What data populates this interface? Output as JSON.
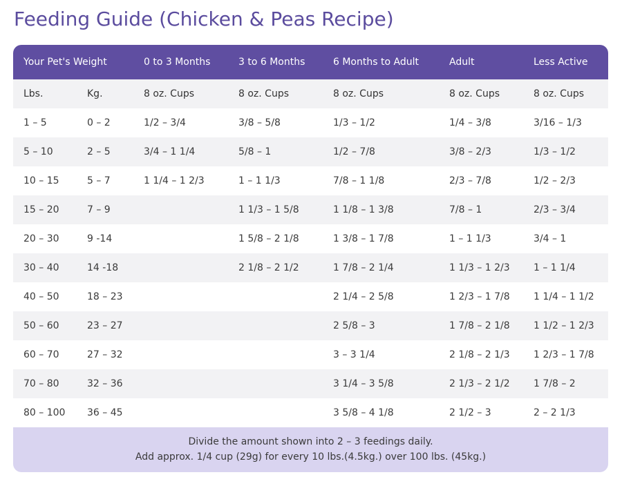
{
  "title": "Feeding Guide (Chicken & Peas Recipe)",
  "table": {
    "headers": [
      "Your Pet's Weight",
      "",
      "0 to 3 Months",
      "3 to 6 Months",
      "6 Months to Adult",
      "Adult",
      "Less Active"
    ],
    "unit_row": [
      "Lbs.",
      "Kg.",
      "8 oz. Cups",
      "8 oz. Cups",
      "8 oz. Cups",
      "8 oz. Cups",
      "8 oz. Cups"
    ],
    "rows": [
      [
        "1 – 5",
        "0 – 2",
        "1/2 – 3/4",
        "3/8 – 5/8",
        "1/3 – 1/2",
        "1/4 – 3/8",
        "3/16 – 1/3"
      ],
      [
        "5 – 10",
        "2 – 5",
        "3/4 – 1 1/4",
        "5/8 – 1",
        "1/2 – 7/8",
        "3/8 – 2/3",
        "1/3 – 1/2"
      ],
      [
        "10 – 15",
        "5 – 7",
        "1 1/4 – 1 2/3",
        "1 – 1 1/3",
        "7/8 – 1 1/8",
        "2/3 – 7/8",
        "1/2 – 2/3"
      ],
      [
        "15 – 20",
        "7 – 9",
        "",
        "1 1/3 – 1 5/8",
        "1 1/8 – 1 3/8",
        "7/8 – 1",
        "2/3 – 3/4"
      ],
      [
        "20 – 30",
        "9 -14",
        "",
        "1 5/8 – 2 1/8",
        "1 3/8 – 1 7/8",
        "1 – 1 1/3",
        "3/4 – 1"
      ],
      [
        "30 – 40",
        "14 -18",
        "",
        "2 1/8 – 2 1/2",
        "1 7/8 – 2 1/4",
        "1 1/3 – 1 2/3",
        "1 – 1 1/4"
      ],
      [
        "40 – 50",
        "18 – 23",
        "",
        "",
        "2 1/4 – 2 5/8",
        "1 2/3 – 1 7/8",
        "1 1/4 – 1 1/2"
      ],
      [
        "50 – 60",
        "23 – 27",
        "",
        "",
        "2 5/8 – 3",
        "1 7/8 – 2 1/8",
        "1 1/2 – 1 2/3"
      ],
      [
        "60 – 70",
        "27 – 32",
        "",
        "",
        "3 – 3 1/4",
        "2 1/8 – 2 1/3",
        "1 2/3 – 1 7/8"
      ],
      [
        "70 – 80",
        "32 – 36",
        "",
        "",
        "3 1/4 – 3 5/8",
        "2 1/3 – 2 1/2",
        "1 7/8 – 2"
      ],
      [
        "80 – 100",
        "36 – 45",
        "",
        "",
        "3 5/8 – 4 1/8",
        "2 1/2 – 3",
        "2 – 2 1/3"
      ]
    ]
  },
  "footer": {
    "line1": "Divide the amount shown into 2 – 3 feedings daily.",
    "line2": "Add approx. 1/4 cup (29g) for every 10 lbs.(4.5kg.) over 100 lbs. (45kg.)"
  },
  "colors": {
    "title": "#5b4c9e",
    "header_bg": "#5f4ea1",
    "row_alt": "#f2f2f4",
    "footer_bg": "#d9d4f0"
  }
}
